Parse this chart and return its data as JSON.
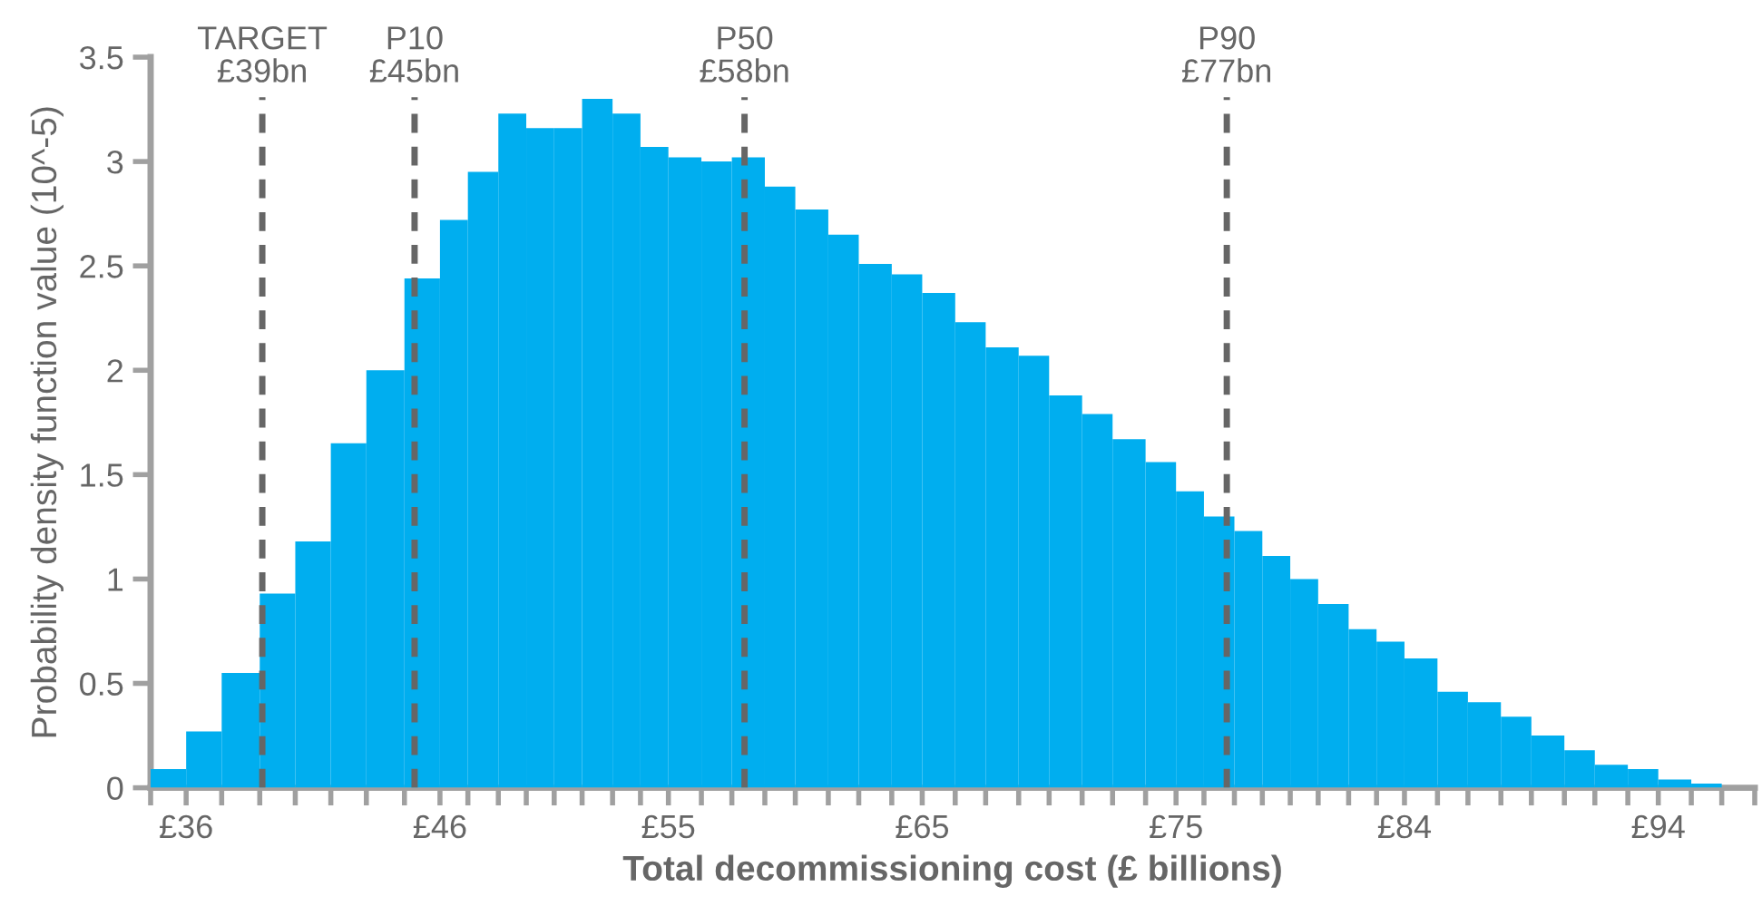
{
  "chart_data": {
    "type": "histogram",
    "xlabel": "Total decommissioning cost (£ billions)",
    "ylabel": "Probability density function value (10^-5)",
    "color": "#00aeef",
    "bins": [
      34.6,
      36,
      37.4,
      38.9,
      40.3,
      41.7,
      43.1,
      44.6,
      46,
      47.1,
      48.3,
      49.4,
      50.5,
      51.6,
      52.8,
      53.9,
      55,
      56.3,
      57.5,
      58.8,
      60,
      61.3,
      62.5,
      63.8,
      65,
      66.3,
      67.5,
      68.8,
      70,
      71.3,
      72.5,
      73.8,
      75,
      76.1,
      77.3,
      78.4,
      79.5,
      80.6,
      81.8,
      82.9,
      84,
      85.3,
      86.5,
      87.8,
      89,
      90.3,
      91.5,
      92.8,
      94,
      95.3,
      96.5
    ],
    "values": [
      0.09,
      0.27,
      0.55,
      0.93,
      1.18,
      1.65,
      2.0,
      2.44,
      2.72,
      2.95,
      3.23,
      3.16,
      3.16,
      3.3,
      3.23,
      3.07,
      3.02,
      3.0,
      3.02,
      2.88,
      2.77,
      2.65,
      2.51,
      2.46,
      2.37,
      2.23,
      2.11,
      2.07,
      1.88,
      1.79,
      1.67,
      1.56,
      1.42,
      1.3,
      1.23,
      1.11,
      1.0,
      0.88,
      0.76,
      0.7,
      0.62,
      0.46,
      0.41,
      0.34,
      0.25,
      0.18,
      0.11,
      0.09,
      0.04,
      0.02
    ],
    "xlim": [
      34.6,
      97.8
    ],
    "xticks": [
      {
        "value": 34.6,
        "label": null
      },
      {
        "value": 36,
        "label": "£36"
      },
      {
        "value": 37.4,
        "label": null
      },
      {
        "value": 38.9,
        "label": null
      },
      {
        "value": 40.3,
        "label": null
      },
      {
        "value": 41.7,
        "label": null
      },
      {
        "value": 43.1,
        "label": null
      },
      {
        "value": 44.6,
        "label": null
      },
      {
        "value": 46,
        "label": "£46"
      },
      {
        "value": 47.1,
        "label": null
      },
      {
        "value": 48.3,
        "label": null
      },
      {
        "value": 49.4,
        "label": null
      },
      {
        "value": 50.5,
        "label": null
      },
      {
        "value": 51.6,
        "label": null
      },
      {
        "value": 52.8,
        "label": null
      },
      {
        "value": 53.9,
        "label": null
      },
      {
        "value": 55,
        "label": "£55"
      },
      {
        "value": 56.3,
        "label": null
      },
      {
        "value": 57.5,
        "label": null
      },
      {
        "value": 58.8,
        "label": null
      },
      {
        "value": 60,
        "label": null
      },
      {
        "value": 61.3,
        "label": null
      },
      {
        "value": 62.5,
        "label": null
      },
      {
        "value": 63.8,
        "label": null
      },
      {
        "value": 65,
        "label": "£65"
      },
      {
        "value": 66.3,
        "label": null
      },
      {
        "value": 67.5,
        "label": null
      },
      {
        "value": 68.8,
        "label": null
      },
      {
        "value": 70,
        "label": null
      },
      {
        "value": 71.3,
        "label": null
      },
      {
        "value": 72.5,
        "label": null
      },
      {
        "value": 73.8,
        "label": null
      },
      {
        "value": 75,
        "label": "£75"
      },
      {
        "value": 76.1,
        "label": null
      },
      {
        "value": 77.3,
        "label": null
      },
      {
        "value": 78.4,
        "label": null
      },
      {
        "value": 79.5,
        "label": null
      },
      {
        "value": 80.6,
        "label": null
      },
      {
        "value": 81.8,
        "label": null
      },
      {
        "value": 82.9,
        "label": null
      },
      {
        "value": 84,
        "label": "£84"
      },
      {
        "value": 85.3,
        "label": null
      },
      {
        "value": 86.5,
        "label": null
      },
      {
        "value": 87.8,
        "label": null
      },
      {
        "value": 89,
        "label": null
      },
      {
        "value": 90.3,
        "label": null
      },
      {
        "value": 91.5,
        "label": null
      },
      {
        "value": 92.8,
        "label": null
      },
      {
        "value": 94,
        "label": "£94"
      },
      {
        "value": 95.3,
        "label": null
      },
      {
        "value": 96.5,
        "label": null
      },
      {
        "value": 97.8,
        "label": null
      }
    ],
    "ylim": [
      0,
      3.5
    ],
    "yticks": [
      0,
      0.5,
      1,
      1.5,
      2,
      2.5,
      3,
      3.5
    ],
    "ref_lines": [
      {
        "axis": "x",
        "value": 39,
        "label": "TARGET\n£39bn",
        "color": "#666666",
        "line_style": "dashed"
      },
      {
        "axis": "x",
        "value": 45,
        "label": "P10\n£45bn",
        "color": "#666666",
        "line_style": "dashed"
      },
      {
        "axis": "x",
        "value": 58,
        "label": "P50\n£58bn",
        "color": "#666666",
        "line_style": "dashed"
      },
      {
        "axis": "x",
        "value": 77,
        "label": "P90\n£77bn",
        "color": "#666666",
        "line_style": "dashed"
      }
    ],
    "grid": false,
    "legend": false
  }
}
